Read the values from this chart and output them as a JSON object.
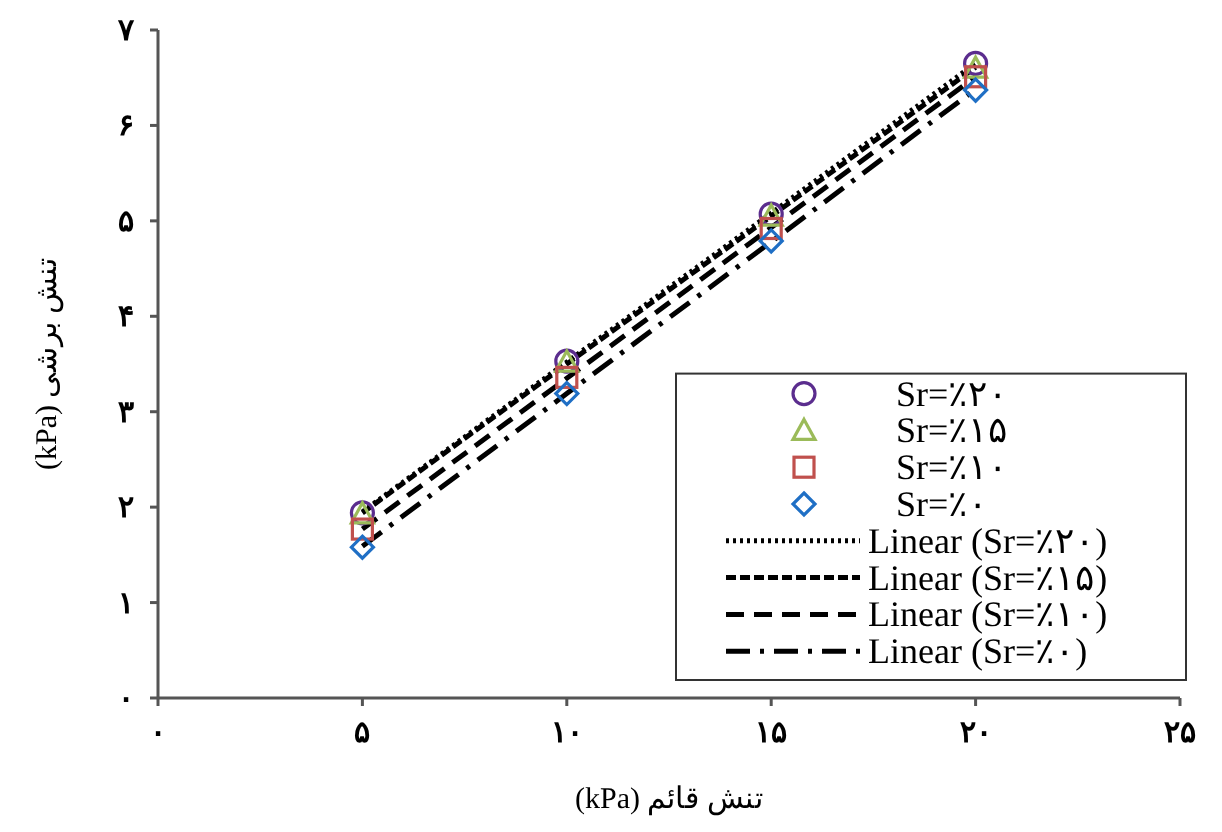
{
  "chart_data": {
    "type": "scatter",
    "xlabel": "تنش قائم (kPa)",
    "ylabel": "تنش برشی (kPa)",
    "x": [
      5,
      10,
      15,
      20
    ],
    "xlim": [
      0,
      25
    ],
    "ylim": [
      0,
      7
    ],
    "xticks": [
      {
        "value": 0,
        "label": "۰"
      },
      {
        "value": 5,
        "label": "۵"
      },
      {
        "value": 10,
        "label": "۱۰"
      },
      {
        "value": 15,
        "label": "۱۵"
      },
      {
        "value": 20,
        "label": "۲۰"
      },
      {
        "value": 25,
        "label": "۲۵"
      }
    ],
    "yticks": [
      {
        "value": 0,
        "label": "۰"
      },
      {
        "value": 1,
        "label": "۱"
      },
      {
        "value": 2,
        "label": "۲"
      },
      {
        "value": 3,
        "label": "۳"
      },
      {
        "value": 4,
        "label": "۴"
      },
      {
        "value": 5,
        "label": "۵"
      },
      {
        "value": 6,
        "label": "۶"
      },
      {
        "value": 7,
        "label": "۷"
      }
    ],
    "grid": false,
    "legend": "bottom right",
    "series": [
      {
        "name": "Sr=٪۲۰",
        "marker": "circle",
        "color": "#5b2d8e",
        "values": [
          1.94,
          3.53,
          5.07,
          6.65
        ]
      },
      {
        "name": "Sr=٪۱۵",
        "marker": "triangle",
        "color": "#9bbb59",
        "values": [
          1.93,
          3.52,
          5.05,
          6.6
        ]
      },
      {
        "name": "Sr=٪۱۰",
        "marker": "square",
        "color": "#c0504d",
        "values": [
          1.77,
          3.36,
          4.92,
          6.51
        ]
      },
      {
        "name": "Sr=٪۰",
        "marker": "diamond",
        "color": "#1f6fc5",
        "values": [
          1.58,
          3.19,
          4.79,
          6.37
        ]
      },
      {
        "name": "Linear (Sr=٪۲۰)",
        "type": "line",
        "marker": "none",
        "line_style": "dotted",
        "color": "#000000",
        "values": [
          1.95,
          3.52,
          5.08,
          6.65
        ]
      },
      {
        "name": "Linear (Sr=٪۱۵)",
        "type": "line",
        "marker": "none",
        "line_style": "dashed",
        "color": "#000000",
        "values": [
          1.94,
          3.5,
          5.05,
          6.61
        ]
      },
      {
        "name": "Linear (Sr=٪۱۰)",
        "type": "line",
        "marker": "none",
        "line_style": "longdash",
        "color": "#000000",
        "values": [
          1.77,
          3.35,
          4.93,
          6.51
        ]
      },
      {
        "name": "Linear (Sr=٪۰)",
        "type": "line",
        "marker": "none",
        "line_style": "dashdot",
        "color": "#000000",
        "values": [
          1.59,
          3.19,
          4.78,
          6.38
        ]
      }
    ]
  }
}
